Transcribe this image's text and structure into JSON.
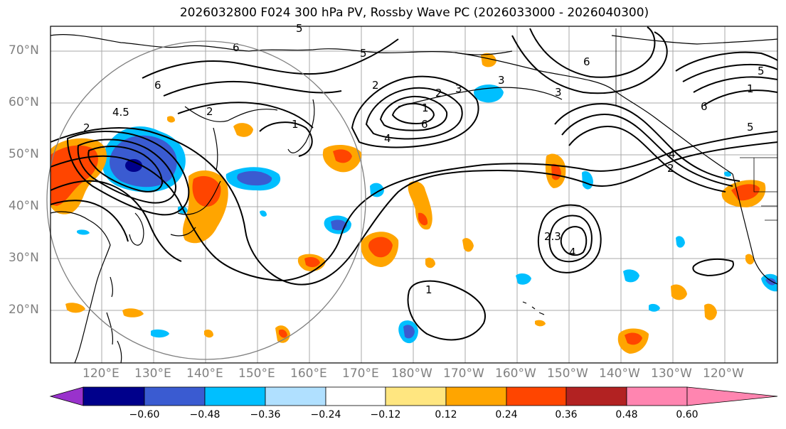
{
  "title": "2026032800 F024 300 hPa PV, Rossby Wave PC (2026033000 - 2026040300)",
  "axes": {
    "lat_labels": [
      "70°N",
      "60°N",
      "50°N",
      "40°N",
      "30°N",
      "20°N"
    ],
    "lon_labels": [
      "120°E",
      "130°E",
      "140°E",
      "150°E",
      "160°E",
      "170°E",
      "180°W",
      "170°W",
      "160°W",
      "150°W",
      "140°W",
      "130°W",
      "120°W"
    ]
  },
  "colorbar": {
    "ticks": [
      "−0.60",
      "−0.48",
      "−0.36",
      "−0.24",
      "−0.12",
      "0.12",
      "0.24",
      "0.36",
      "0.48",
      "0.60"
    ],
    "colors": [
      "#9932cc",
      "#00008b",
      "#3a5bd1",
      "#00bfff",
      "#b0e0ff",
      "#ffffff",
      "#ffe680",
      "#ffa500",
      "#ff4500",
      "#b22222",
      "#ff85b0"
    ]
  },
  "contour_labels": [
    "5",
    "6",
    "6",
    "4.5",
    "2",
    "2",
    "1",
    "2",
    "4",
    "6",
    "5",
    "1",
    "2",
    "3",
    "3",
    "6",
    "3",
    "5",
    "1",
    "6",
    "4",
    "2",
    "2.3",
    "4",
    "1",
    "5"
  ],
  "colors": {
    "grid": "#a8a8a8",
    "contour": "#000000",
    "circle": "#808080",
    "anomaly_neg_dark": "#00008b",
    "anomaly_neg_mid": "#3a5bd1",
    "anomaly_neg_light": "#00bfff",
    "anomaly_pos_light": "#ffa500",
    "anomaly_pos_dark": "#ff4500"
  }
}
